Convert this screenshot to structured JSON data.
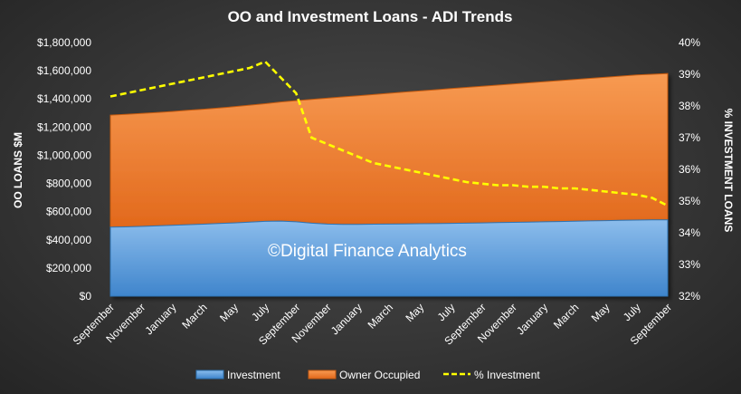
{
  "chart_data": {
    "type": "area",
    "title": "OO and Investment Loans - ADI Trends",
    "ylabel": "OO LOANS $M",
    "y2label": "% INVESTMENT LOANS",
    "watermark": "©Digital Finance Analytics",
    "ylim": [
      0,
      1800000
    ],
    "y2lim": [
      32,
      40
    ],
    "y_ticks": [
      "$0",
      "$200,000",
      "$400,000",
      "$600,000",
      "$800,000",
      "$1,000,000",
      "$1,200,000",
      "$1,400,000",
      "$1,600,000",
      "$1,800,000"
    ],
    "y2_ticks": [
      "32%",
      "33%",
      "34%",
      "35%",
      "36%",
      "37%",
      "38%",
      "39%",
      "40%"
    ],
    "x_tick_labels": [
      "September",
      "November",
      "January",
      "March",
      "May",
      "July",
      "September",
      "November",
      "January",
      "March",
      "May",
      "July",
      "September",
      "November",
      "January",
      "March",
      "May",
      "July",
      "September"
    ],
    "x": [
      "Sep",
      "Oct",
      "Nov",
      "Dec",
      "Jan",
      "Feb",
      "Mar",
      "Apr",
      "May",
      "Jun",
      "Jul",
      "Aug",
      "Sep",
      "Oct",
      "Nov",
      "Dec",
      "Jan",
      "Feb",
      "Mar",
      "Apr",
      "May",
      "Jun",
      "Jul",
      "Aug",
      "Sep",
      "Oct",
      "Nov",
      "Dec",
      "Jan",
      "Feb",
      "Mar",
      "Apr",
      "May",
      "Jun",
      "Jul",
      "Aug",
      "Sep"
    ],
    "series": [
      {
        "name": "Investment",
        "kind": "stacked-area",
        "color": "#5b9bd5",
        "values": [
          490000,
          492000,
          495000,
          499000,
          503000,
          507000,
          511000,
          516000,
          520000,
          526000,
          531000,
          533000,
          528000,
          518000,
          512000,
          510000,
          510000,
          511000,
          512000,
          513000,
          514000,
          515000,
          517000,
          518000,
          520000,
          522000,
          524000,
          526000,
          528000,
          530000,
          532000,
          534000,
          536000,
          538000,
          540000,
          541000,
          542000
        ]
      },
      {
        "name": "Owner Occupied",
        "kind": "stacked-area",
        "color": "#ed7d31",
        "values": [
          795000,
          798000,
          802000,
          805000,
          808000,
          812000,
          816000,
          820000,
          825000,
          830000,
          835000,
          845000,
          860000,
          878000,
          893000,
          904000,
          912000,
          920000,
          928000,
          936000,
          943000,
          950000,
          957000,
          964000,
          970000,
          976000,
          982000,
          988000,
          994000,
          1000000,
          1006000,
          1012000,
          1018000,
          1024000,
          1030000,
          1034000,
          1038000
        ]
      },
      {
        "name": "% Investment",
        "kind": "line",
        "axis": "right",
        "color": "#ffff00",
        "values": [
          38.3,
          38.4,
          38.5,
          38.6,
          38.7,
          38.8,
          38.9,
          39.0,
          39.1,
          39.2,
          39.4,
          38.9,
          38.4,
          37.0,
          36.8,
          36.6,
          36.4,
          36.2,
          36.1,
          36.0,
          35.9,
          35.8,
          35.7,
          35.6,
          35.55,
          35.5,
          35.5,
          35.45,
          35.45,
          35.4,
          35.4,
          35.35,
          35.3,
          35.25,
          35.2,
          35.1,
          34.85
        ]
      }
    ],
    "legend": [
      "Investment",
      "Owner Occupied",
      "% Investment"
    ],
    "legend_position": "bottom",
    "grid": false
  }
}
